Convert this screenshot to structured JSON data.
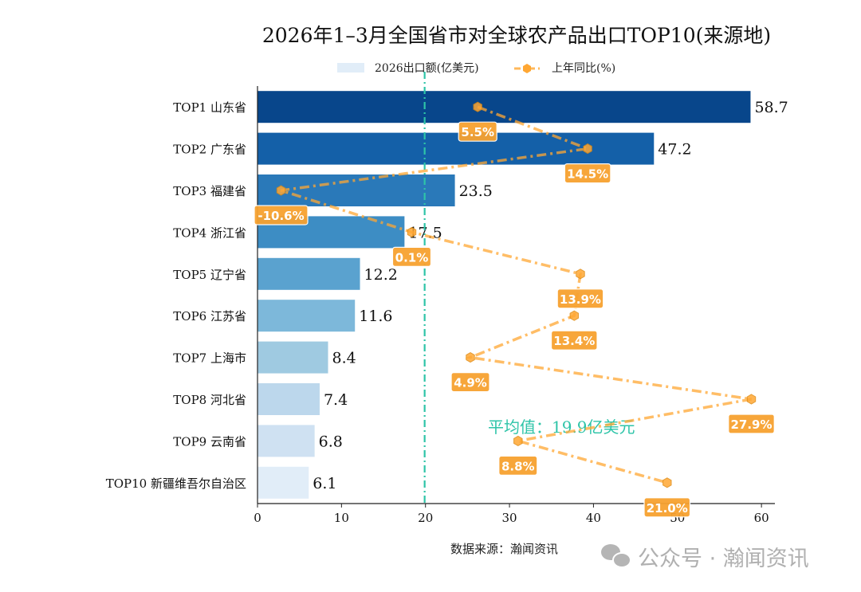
{
  "chart_data": {
    "type": "bar",
    "orientation": "horizontal",
    "title": "2026年1–3月全国省市对全球农产品出口TOP10(来源地)",
    "categories": [
      "TOP1 山东省",
      "TOP2 广东省",
      "TOP3 福建省",
      "TOP4 浙江省",
      "TOP5 辽宁省",
      "TOP6 江苏省",
      "TOP7 上海市",
      "TOP8 河北省",
      "TOP9 云南省",
      "TOP10 新疆维吾尔自治区"
    ],
    "series": [
      {
        "name": "2026出口额(亿美元)",
        "type": "bar",
        "values": [
          58.7,
          47.2,
          23.5,
          17.5,
          12.2,
          11.6,
          8.4,
          7.4,
          6.8,
          6.1
        ],
        "labels": [
          "58.7",
          "47.2",
          "23.5",
          "17.5",
          "12.2",
          "11.6",
          "8.4",
          "7.4",
          "6.8",
          "6.1"
        ],
        "colors": [
          "#08468b",
          "#1460a8",
          "#2a79b9",
          "#3d8dc4",
          "#5aa2cf",
          "#7db8da",
          "#9fcae1",
          "#bcd7ec",
          "#cfe1f2",
          "#e1edf8"
        ]
      },
      {
        "name": "上年同比(%)",
        "type": "line",
        "values": [
          5.5,
          14.5,
          -10.6,
          0.1,
          13.9,
          13.4,
          4.9,
          27.9,
          8.8,
          21.0
        ],
        "labels": [
          "5.5%",
          "14.5%",
          "-10.6%",
          "0.1%",
          "13.9%",
          "13.4%",
          "4.9%",
          "27.9%",
          "8.8%",
          "21.0%"
        ],
        "color": "#ffa733",
        "marker": "hexagon",
        "linestyle": "dash-dot",
        "axis": "hidden secondary x"
      }
    ],
    "xlim": [
      0,
      61.6
    ],
    "xticks": [
      "0",
      "10",
      "20",
      "30",
      "40",
      "50",
      "60"
    ],
    "reference_line": {
      "value": 19.9,
      "label": "平均值：19.9亿美元",
      "color": "#2ec4a8",
      "linestyle": "dash-dot"
    },
    "legend": {
      "placement": "top-center",
      "entries": [
        "2026出口额(亿美元)",
        "上年同比(%)"
      ]
    },
    "grid": false
  },
  "source": "数据来源：瀚闻资讯",
  "watermark": "公众号 · 瀚闻资讯"
}
